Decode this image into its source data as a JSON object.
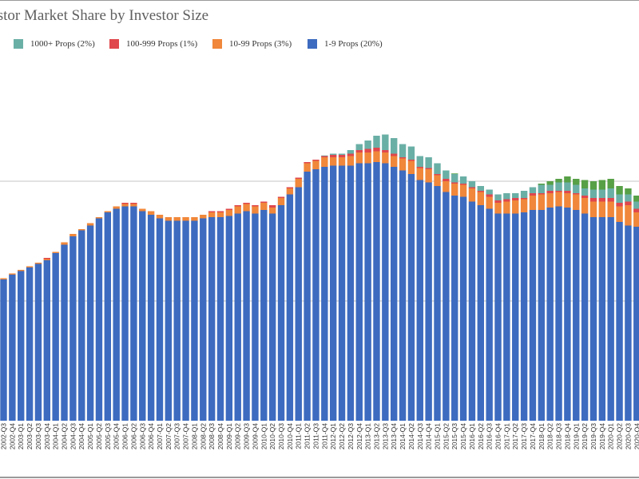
{
  "chart_data": {
    "type": "bar",
    "stacked": true,
    "title": "Investor Market Share by Investor Size",
    "xlabel": "",
    "ylabel": "",
    "ylim": [
      0,
      30
    ],
    "grid": true,
    "gridlines": [
      10,
      20
    ],
    "legend_position": "top-left",
    "categories": [
      "2002-Q3",
      "2002-Q4",
      "2003-Q1",
      "2003-Q2",
      "2003-Q3",
      "2003-Q4",
      "2004-Q1",
      "2004-Q2",
      "2004-Q3",
      "2004-Q4",
      "2005-Q1",
      "2005-Q2",
      "2005-Q3",
      "2005-Q4",
      "2006-Q1",
      "2006-Q2",
      "2006-Q3",
      "2006-Q4",
      "2007-Q1",
      "2007-Q2",
      "2007-Q3",
      "2007-Q4",
      "2008-Q1",
      "2008-Q2",
      "2008-Q3",
      "2008-Q4",
      "2009-Q1",
      "2009-Q2",
      "2009-Q3",
      "2009-Q4",
      "2010-Q1",
      "2010-Q2",
      "2010-Q3",
      "2010-Q4",
      "2011-Q1",
      "2011-Q2",
      "2011-Q3",
      "2011-Q4",
      "2012-Q1",
      "2012-Q2",
      "2012-Q3",
      "2012-Q4",
      "2013-Q1",
      "2013-Q2",
      "2013-Q3",
      "2013-Q4",
      "2014-Q1",
      "2014-Q2",
      "2014-Q3",
      "2014-Q4",
      "2015-Q1",
      "2015-Q2",
      "2015-Q3",
      "2015-Q4",
      "2016-Q1",
      "2016-Q2",
      "2016-Q3",
      "2016-Q4",
      "2017-Q1",
      "2017-Q2",
      "2017-Q3",
      "2017-Q4",
      "2018-Q1",
      "2018-Q2",
      "2018-Q3",
      "2018-Q4",
      "2019-Q1",
      "2019-Q2",
      "2019-Q3",
      "2019-Q4",
      "2020-Q1",
      "2020-Q2",
      "2020-Q3",
      "2020-Q4"
    ],
    "series": [
      {
        "name": "1-9 Props (20%)",
        "color": "#3d6bbf",
        "values": [
          11.8,
          12.2,
          12.5,
          12.8,
          13.1,
          13.4,
          14.0,
          14.7,
          15.4,
          15.9,
          16.3,
          16.9,
          17.4,
          17.7,
          17.9,
          17.9,
          17.5,
          17.2,
          16.9,
          16.7,
          16.7,
          16.7,
          16.7,
          16.9,
          17.0,
          17.0,
          17.1,
          17.3,
          17.5,
          17.3,
          17.6,
          17.3,
          18.0,
          18.9,
          19.5,
          20.8,
          21.0,
          21.2,
          21.3,
          21.3,
          21.3,
          21.5,
          21.5,
          21.6,
          21.5,
          21.2,
          20.9,
          20.6,
          20.1,
          19.9,
          19.6,
          19.1,
          18.8,
          18.7,
          18.3,
          18.0,
          17.7,
          17.3,
          17.3,
          17.3,
          17.4,
          17.6,
          17.6,
          17.8,
          17.9,
          17.8,
          17.6,
          17.3,
          17.0,
          17.0,
          17.0,
          16.6,
          16.3,
          16.2
        ]
      },
      {
        "name": "10-99 Props (3%)",
        "color": "#f0873a",
        "values": [
          0.1,
          0.1,
          0.1,
          0.1,
          0.1,
          0.1,
          0.1,
          0.2,
          0.2,
          0.1,
          0.2,
          0.1,
          0.1,
          0.2,
          0.2,
          0.2,
          0.2,
          0.3,
          0.3,
          0.3,
          0.3,
          0.3,
          0.3,
          0.3,
          0.4,
          0.4,
          0.5,
          0.6,
          0.6,
          0.6,
          0.6,
          0.5,
          0.6,
          0.5,
          0.7,
          0.7,
          0.7,
          0.8,
          0.7,
          0.7,
          0.8,
          0.9,
          0.9,
          0.9,
          0.9,
          0.9,
          1.0,
          1.1,
          1.0,
          1.1,
          0.9,
          0.9,
          1.0,
          1.0,
          1.1,
          1.1,
          1.0,
          0.9,
          1.0,
          1.1,
          1.1,
          1.2,
          1.3,
          1.2,
          1.2,
          1.2,
          1.3,
          1.3,
          1.3,
          1.3,
          1.3,
          1.3,
          1.7,
          1.2
        ]
      },
      {
        "name": "100-999 Props (1%)",
        "color": "#e0474c",
        "values": [
          0,
          0,
          0,
          0,
          0,
          0.1,
          0,
          0,
          0,
          0,
          0,
          0,
          0,
          0,
          0.1,
          0.1,
          0,
          0,
          0,
          0,
          0,
          0,
          0,
          0,
          0.1,
          0.1,
          0.1,
          0.1,
          0.1,
          0.1,
          0.1,
          0.2,
          0.1,
          0.1,
          0.1,
          0.1,
          0.1,
          0.1,
          0.2,
          0.2,
          0.2,
          0.2,
          0.3,
          0.3,
          0.2,
          0.2,
          0.1,
          0.1,
          0.1,
          0.1,
          0.1,
          0.2,
          0.1,
          0.1,
          0.1,
          0.1,
          0.2,
          0.2,
          0.2,
          0.2,
          0.1,
          0.2,
          0.1,
          0.2,
          0.1,
          0.2,
          0.1,
          0.2,
          0.3,
          0.3,
          0.3,
          0.3,
          0.3,
          0.3
        ]
      },
      {
        "name": "1000+ Props (2%)",
        "color": "#6aafa6",
        "values": [
          0,
          0,
          0,
          0,
          0,
          0,
          0,
          0,
          0,
          0,
          0,
          0,
          0,
          0,
          0,
          0,
          0,
          0,
          0,
          0,
          0,
          0,
          0,
          0,
          0,
          0,
          0,
          0,
          0,
          0,
          0,
          0,
          0,
          0,
          0,
          0,
          0,
          0.05,
          0.1,
          0.1,
          0.3,
          0.5,
          0.7,
          1.0,
          1.3,
          1.3,
          1.1,
          1.1,
          0.9,
          0.9,
          0.9,
          0.7,
          0.7,
          0.6,
          0.5,
          0.4,
          0.4,
          0.5,
          0.5,
          0.4,
          0.6,
          0.5,
          0.7,
          0.5,
          0.7,
          0.7,
          0.7,
          0.6,
          0.7,
          0.7,
          0.8,
          0.7,
          0.6,
          0.6
        ]
      },
      {
        "color": "#57a046",
        "values": [
          0,
          0,
          0,
          0,
          0,
          0,
          0,
          0,
          0,
          0,
          0,
          0,
          0,
          0,
          0,
          0,
          0,
          0,
          0,
          0,
          0,
          0,
          0,
          0,
          0,
          0,
          0,
          0,
          0,
          0,
          0,
          0,
          0,
          0,
          0,
          0,
          0,
          0,
          0,
          0,
          0,
          0,
          0,
          0,
          0,
          0,
          0,
          0,
          0,
          0,
          0,
          0,
          0.05,
          0,
          0,
          0,
          0,
          0,
          0,
          0,
          0,
          0,
          0.1,
          0.3,
          0.3,
          0.5,
          0.5,
          0.7,
          0.7,
          0.8,
          0.8,
          0.7,
          0.5,
          0.5
        ]
      }
    ]
  },
  "legend": [
    {
      "label": "1000+ Props (2%)",
      "color": "#6aafa6"
    },
    {
      "label": "100-999 Props (1%)",
      "color": "#e0474c"
    },
    {
      "label": "10-99 Props (3%)",
      "color": "#f0873a"
    },
    {
      "label": "1-9 Props (20%)",
      "color": "#3d6bbf"
    }
  ]
}
